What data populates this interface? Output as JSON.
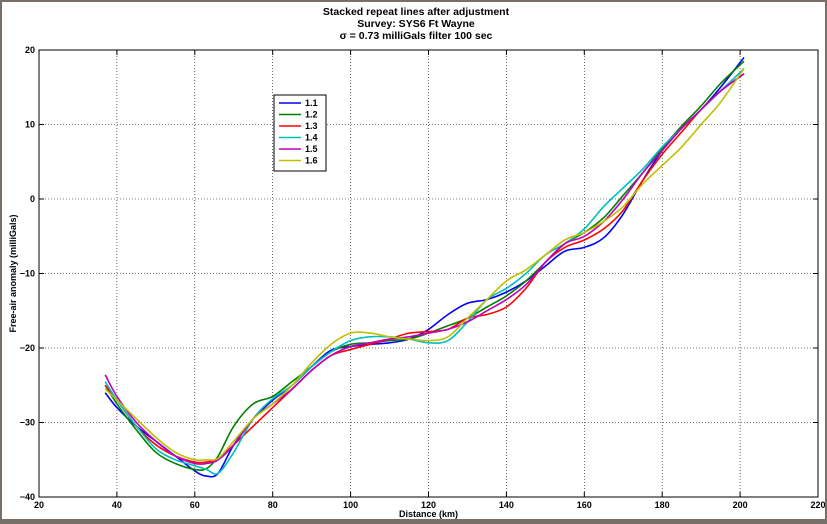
{
  "chart_data": {
    "type": "line",
    "title_lines": [
      "Stacked repeat lines after adjustment",
      "Survey: SYS6 Ft Wayne",
      "σ = 0.73 milliGals filter 100 sec"
    ],
    "xlabel": "Distance (km)",
    "ylabel": "Free-air anomaly (milliGals)",
    "xlim": [
      20,
      220
    ],
    "ylim": [
      -40,
      20
    ],
    "xticks": [
      20,
      40,
      60,
      80,
      100,
      120,
      140,
      160,
      180,
      200,
      220
    ],
    "yticks": [
      -40,
      -30,
      -20,
      -10,
      0,
      10,
      20
    ],
    "ytick_labels": [
      "−40",
      "−30",
      "−20",
      "−10",
      "0",
      "10",
      "20"
    ],
    "grid": true,
    "legend_position": "upper-left",
    "series": [
      {
        "name": "1.1",
        "color": "#0000ff",
        "x": [
          37,
          40,
          45,
          50,
          55,
          60,
          63,
          66,
          70,
          75,
          80,
          85,
          90,
          95,
          100,
          105,
          110,
          115,
          120,
          125,
          130,
          135,
          140,
          145,
          150,
          155,
          160,
          165,
          170,
          175,
          180,
          185,
          190,
          195,
          201
        ],
        "y": [
          -26,
          -28,
          -30.5,
          -32.5,
          -34.5,
          -36.5,
          -37.2,
          -36.8,
          -33,
          -29.5,
          -27,
          -25,
          -22.5,
          -20.3,
          -19.8,
          -19.5,
          -19.3,
          -18.8,
          -17.5,
          -15.5,
          -14,
          -13.5,
          -12.5,
          -11,
          -9,
          -7,
          -6.5,
          -5.2,
          -2,
          2.5,
          6.5,
          9.5,
          12,
          15,
          19
        ]
      },
      {
        "name": "1.2",
        "color": "#008000",
        "x": [
          37,
          40,
          45,
          50,
          55,
          60,
          63,
          66,
          70,
          75,
          80,
          85,
          90,
          95,
          100,
          105,
          110,
          115,
          120,
          125,
          130,
          135,
          140,
          145,
          150,
          155,
          160,
          165,
          170,
          175,
          180,
          185,
          190,
          195,
          201
        ],
        "y": [
          -25,
          -27.5,
          -31,
          -34,
          -35.5,
          -36.3,
          -36.2,
          -34.5,
          -30.5,
          -27.5,
          -26.5,
          -24.5,
          -22.5,
          -20.5,
          -19.5,
          -19.3,
          -19,
          -18.8,
          -18,
          -17,
          -16,
          -14.5,
          -13,
          -11,
          -8.5,
          -6,
          -4.5,
          -2.5,
          0.5,
          3.5,
          6.8,
          9.8,
          12.5,
          15.5,
          18.5
        ]
      },
      {
        "name": "1.3",
        "color": "#ff0000",
        "x": [
          37,
          40,
          45,
          50,
          55,
          60,
          63,
          66,
          70,
          75,
          80,
          85,
          90,
          95,
          100,
          105,
          110,
          115,
          120,
          125,
          130,
          135,
          140,
          145,
          150,
          155,
          160,
          165,
          170,
          175,
          180,
          185,
          190,
          195,
          201
        ],
        "y": [
          -25,
          -27,
          -30.5,
          -33,
          -34.5,
          -35.3,
          -35.3,
          -34.8,
          -33,
          -30.5,
          -28,
          -25.5,
          -23,
          -21,
          -20.2,
          -19.5,
          -18.8,
          -18,
          -17.8,
          -17.5,
          -16,
          -15.5,
          -14.5,
          -12,
          -8.5,
          -6.5,
          -5.5,
          -4,
          -1.5,
          2.5,
          6,
          9,
          12,
          14.5,
          16.8
        ]
      },
      {
        "name": "1.4",
        "color": "#00bfbf",
        "x": [
          37,
          40,
          45,
          50,
          55,
          60,
          63,
          66,
          70,
          75,
          80,
          85,
          90,
          95,
          100,
          105,
          110,
          115,
          120,
          125,
          130,
          135,
          140,
          145,
          150,
          155,
          160,
          165,
          170,
          175,
          180,
          185,
          190,
          195,
          201
        ],
        "y": [
          -24.5,
          -27,
          -30.5,
          -33.5,
          -35,
          -35.8,
          -36.3,
          -36.8,
          -34,
          -29.5,
          -26.8,
          -25,
          -22.5,
          -20.5,
          -19,
          -18.5,
          -18.5,
          -18.8,
          -19.3,
          -19,
          -16.5,
          -13.5,
          -12,
          -10,
          -7.5,
          -6,
          -4,
          -1,
          1.5,
          4,
          7,
          9.5,
          12,
          14.5,
          17.5
        ]
      },
      {
        "name": "1.5",
        "color": "#bf00bf",
        "x": [
          37,
          40,
          45,
          50,
          55,
          60,
          63,
          66,
          70,
          75,
          80,
          85,
          90,
          95,
          100,
          105,
          110,
          115,
          120,
          125,
          130,
          135,
          140,
          145,
          150,
          155,
          160,
          165,
          170,
          175,
          180,
          185,
          190,
          195,
          201
        ],
        "y": [
          -23.6,
          -26.5,
          -30,
          -32.5,
          -34.5,
          -35.5,
          -35.5,
          -35,
          -33,
          -29.5,
          -27.5,
          -25.5,
          -23,
          -21,
          -19.8,
          -19.3,
          -18.8,
          -18.5,
          -18,
          -17.5,
          -16.5,
          -15,
          -13.5,
          -11.5,
          -8.5,
          -6,
          -5,
          -3,
          0,
          3.5,
          6.5,
          9.5,
          12,
          14.5,
          16.8
        ]
      },
      {
        "name": "1.6",
        "color": "#bfbf00",
        "x": [
          37,
          40,
          45,
          50,
          55,
          60,
          63,
          66,
          70,
          75,
          80,
          85,
          90,
          95,
          100,
          105,
          110,
          115,
          120,
          125,
          130,
          135,
          140,
          145,
          150,
          155,
          160,
          165,
          170,
          175,
          180,
          185,
          190,
          195,
          201
        ],
        "y": [
          -25.5,
          -27,
          -29.5,
          -32,
          -34,
          -35,
          -35,
          -34.8,
          -32.5,
          -29.5,
          -27.5,
          -25,
          -22,
          -19.5,
          -18,
          -18,
          -18.5,
          -18.8,
          -19,
          -18.5,
          -16,
          -13.5,
          -11,
          -9.5,
          -7.5,
          -5.5,
          -4.5,
          -3,
          -1,
          2,
          4.5,
          7,
          10,
          13,
          17.5
        ]
      }
    ]
  }
}
